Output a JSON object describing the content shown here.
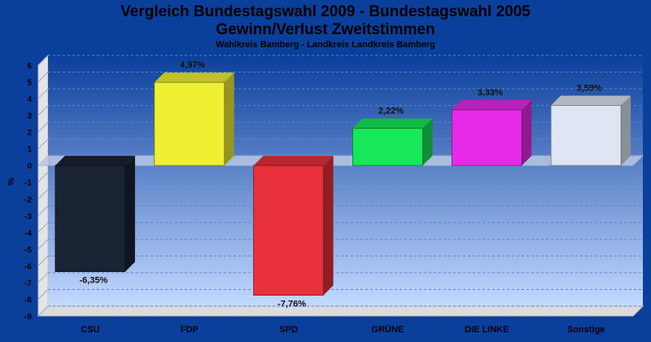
{
  "title_line1": "Vergleich Bundestagswahl 2009 - Bundestagswahl 2005",
  "title_line2": "Gewinn/Verlust Zweitstimmen",
  "subtitle": "Wahlkreis Bamberg - Landkreis Landkreis Bamberg",
  "chart_data": {
    "type": "bar",
    "title": "Vergleich Bundestagswahl 2009 - Bundestagswahl 2005 Gewinn/Verlust Zweitstimmen",
    "subtitle": "Wahlkreis Bamberg - Landkreis Landkreis Bamberg",
    "categories": [
      "CSU",
      "FDP",
      "SPD",
      "GRÜNE",
      "DIE LINKE",
      "Sonstige"
    ],
    "values": [
      -6.35,
      4.97,
      -7.76,
      2.22,
      3.33,
      3.59
    ],
    "value_labels": [
      "-6,35%",
      "4,97%",
      "-7,76%",
      "2,22%",
      "3,33%",
      "3,59%"
    ],
    "colors": [
      "#1a2333",
      "#f0f033",
      "#e8303c",
      "#17e85a",
      "#e62ae8",
      "#dde6f2"
    ],
    "xlabel": "",
    "ylabel": "%",
    "ylim": [
      -9,
      6
    ],
    "yticks": [
      6,
      5,
      4,
      3,
      2,
      1,
      0,
      -1,
      -2,
      -3,
      -4,
      -5,
      -6,
      -7,
      -8,
      -9
    ],
    "grid": true
  }
}
